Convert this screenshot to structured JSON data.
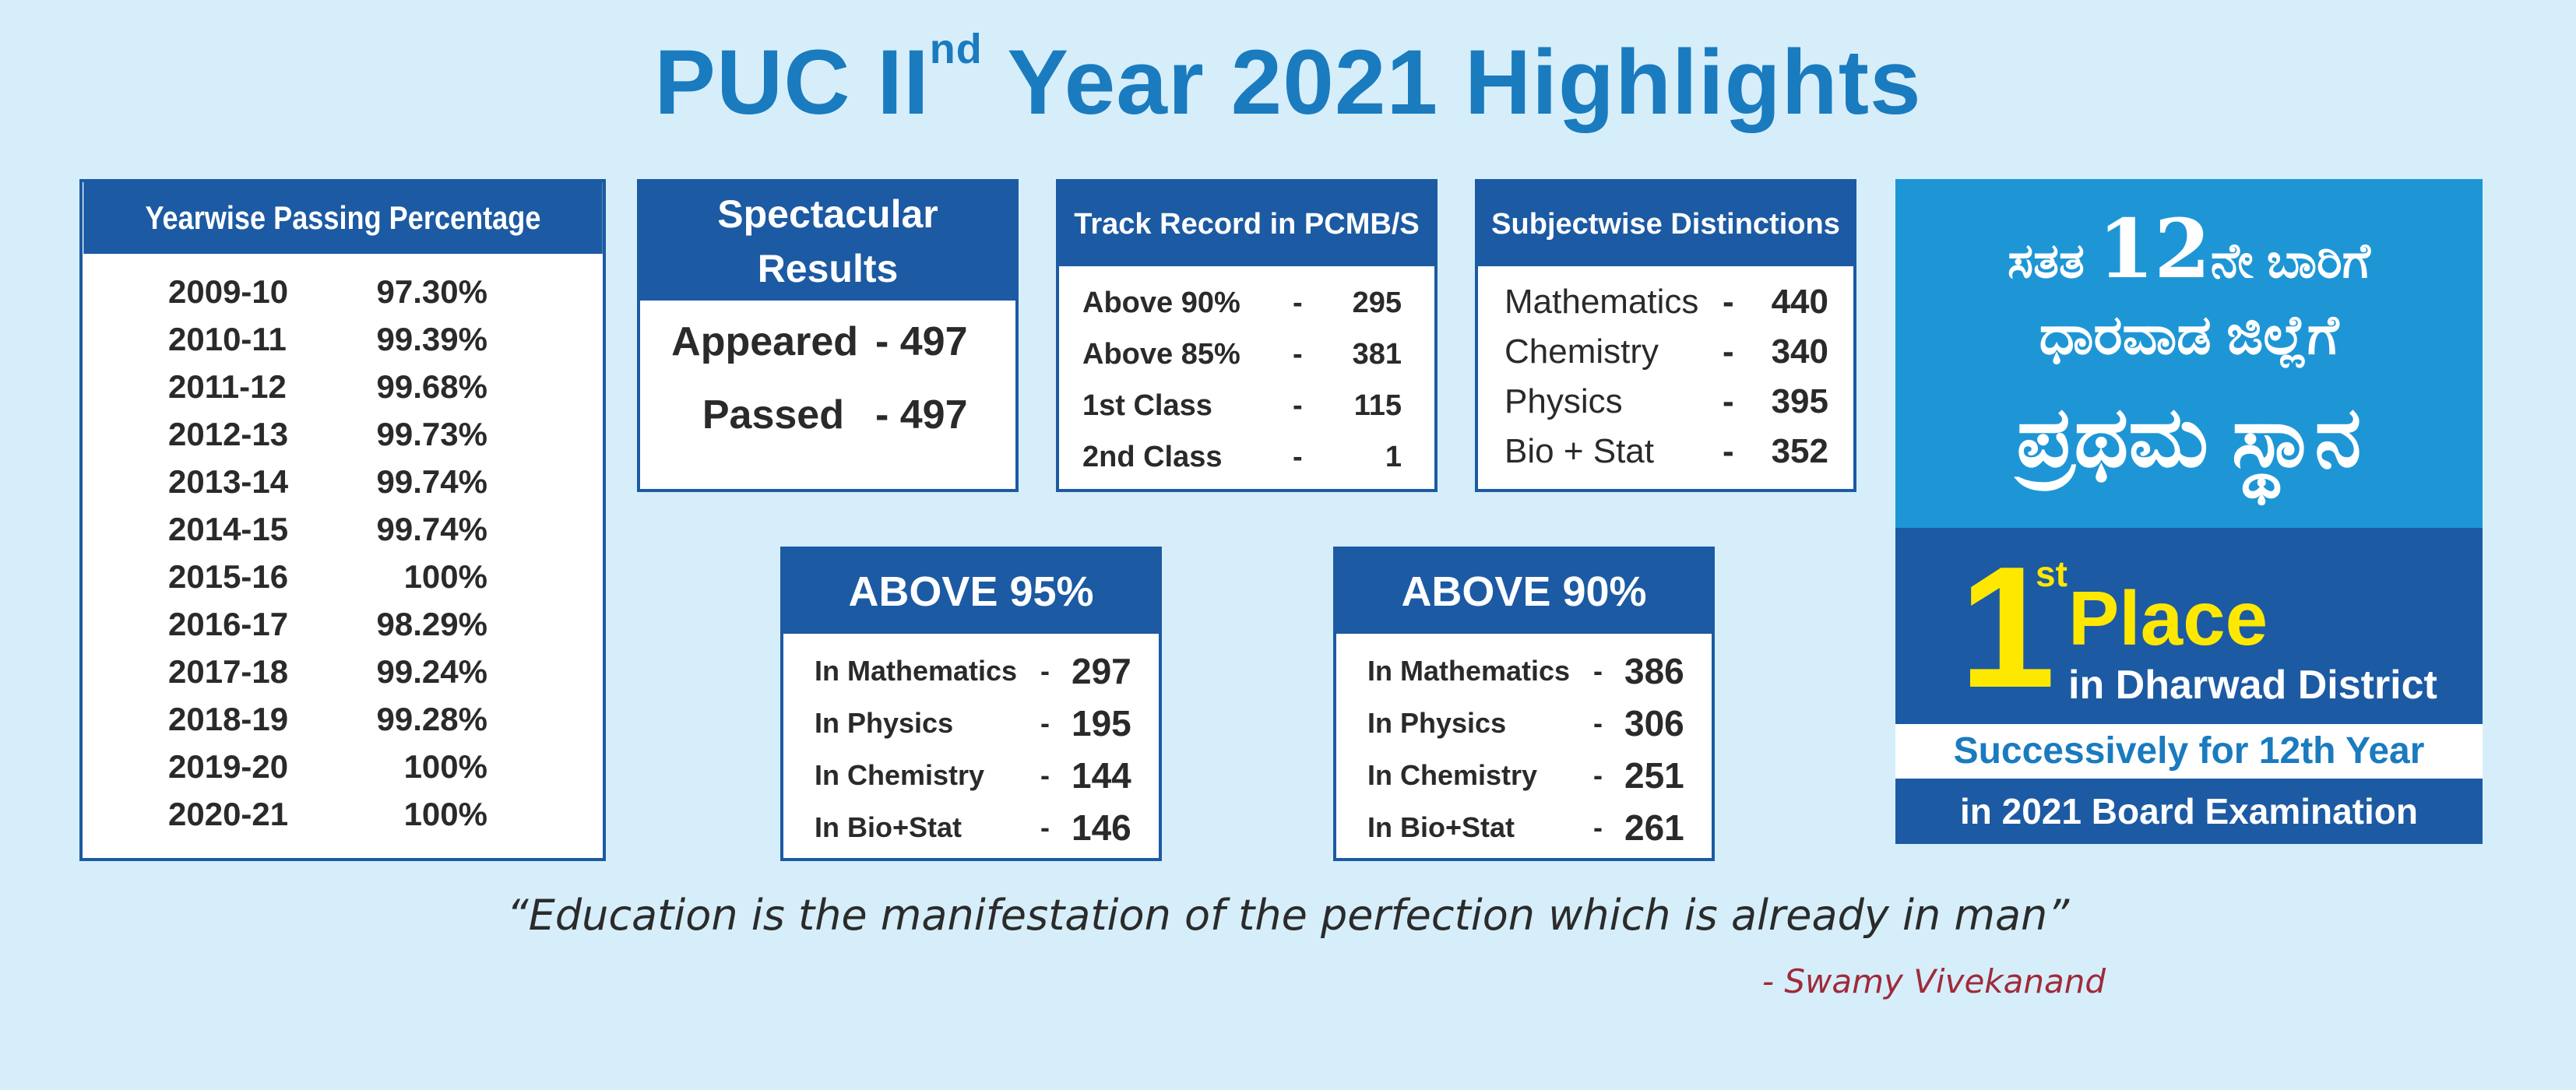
{
  "title": {
    "pre": "PUC II",
    "sup": "nd",
    "post": " Year 2021 Highlights"
  },
  "yearwise": {
    "header": "Yearwise Passing Percentage",
    "rows": [
      {
        "year": "2009-10",
        "pct": "97.30%"
      },
      {
        "year": "2010-11",
        "pct": "99.39%"
      },
      {
        "year": "2011-12",
        "pct": "99.68%"
      },
      {
        "year": "2012-13",
        "pct": "99.73%"
      },
      {
        "year": "2013-14",
        "pct": "99.74%"
      },
      {
        "year": "2014-15",
        "pct": "99.74%"
      },
      {
        "year": "2015-16",
        "pct": "100%"
      },
      {
        "year": "2016-17",
        "pct": "98.29%"
      },
      {
        "year": "2017-18",
        "pct": "99.24%"
      },
      {
        "year": "2018-19",
        "pct": "99.28%"
      },
      {
        "year": "2019-20",
        "pct": "100%"
      },
      {
        "year": "2020-21",
        "pct": "100%"
      }
    ]
  },
  "spectacular": {
    "header_line1": "Spectacular",
    "header_line2": "Results",
    "appeared_label": "Appeared",
    "appeared_value": "- 497",
    "passed_label": "Passed",
    "passed_value": "- 497"
  },
  "track": {
    "header": "Track Record in PCMB/S",
    "rows": [
      {
        "label": "Above 90%",
        "dash": "-",
        "value": "295"
      },
      {
        "label": "Above 85%",
        "dash": "-",
        "value": "381"
      },
      {
        "label": "1st Class",
        "dash": "-",
        "value": "115"
      },
      {
        "label": "2nd Class",
        "dash": "-",
        "value": "1"
      }
    ]
  },
  "subject": {
    "header": "Subjectwise Distinctions",
    "rows": [
      {
        "label": "Mathematics",
        "dash": "-",
        "value": "440"
      },
      {
        "label": "Chemistry",
        "dash": "-",
        "value": "340"
      },
      {
        "label": "Physics",
        "dash": "-",
        "value": "395"
      },
      {
        "label": "Bio + Stat",
        "dash": "-",
        "value": "352"
      }
    ]
  },
  "above95": {
    "header": "ABOVE 95%",
    "rows": [
      {
        "label": "In Mathematics",
        "dash": "-",
        "value": "297"
      },
      {
        "label": "In Physics",
        "dash": "-",
        "value": "195"
      },
      {
        "label": "In Chemistry",
        "dash": "-",
        "value": "144"
      },
      {
        "label": "In Bio+Stat",
        "dash": "-",
        "value": "146"
      }
    ]
  },
  "above90": {
    "header": "ABOVE 90%",
    "rows": [
      {
        "label": "In Mathematics",
        "dash": "-",
        "value": "386"
      },
      {
        "label": "In Physics",
        "dash": "-",
        "value": "306"
      },
      {
        "label": "In Chemistry",
        "dash": "-",
        "value": "251"
      },
      {
        "label": "In Bio+Stat",
        "dash": "-",
        "value": "261"
      }
    ]
  },
  "rank": {
    "kannada_line1_a": "ಸತತ ",
    "kannada_line1_num": "12",
    "kannada_line1_b": "ನೇ ಬಾರಿಗೆ",
    "kannada_line2": "ಧಾರವಾಡ ಜಿಲ್ಲೆಗೆ",
    "kannada_line3": "ಪ್ರಥಮ ಸ್ಥಾನ",
    "one": "1",
    "st": "st",
    "place": "Place",
    "district": "in Dharwad District",
    "successively": "Successively for 12th Year",
    "board": "in 2021 Board Examination"
  },
  "quote": "“Education is the manifestation of the perfection which is already in man”",
  "author": "- Swamy Vivekanand",
  "colors": {
    "background": "#d6eefa",
    "title": "#1a7bbf",
    "header": "#1c5aa3",
    "panel_light": "#1e96d6",
    "highlight": "#ffe800",
    "author": "#a02a3a"
  }
}
